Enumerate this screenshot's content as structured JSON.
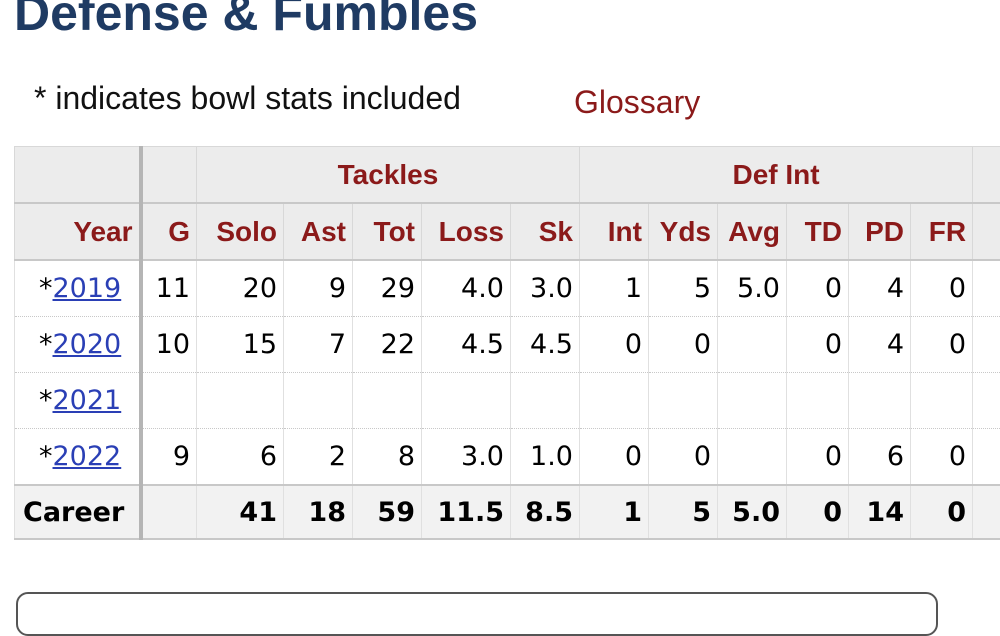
{
  "page": {
    "title": "Defense & Fumbles",
    "note": "* indicates bowl stats included",
    "glossary_link": "Glossary"
  },
  "table": {
    "over_headers": {
      "tackles": "Tackles",
      "def_int": "Def Int"
    },
    "headers": [
      "Year",
      "G",
      "Solo",
      "Ast",
      "Tot",
      "Loss",
      "Sk",
      "Int",
      "Yds",
      "Avg",
      "TD",
      "PD",
      "FR"
    ],
    "rows": [
      {
        "prefix": "*",
        "year": "2019",
        "cells": [
          "11",
          "20",
          "9",
          "29",
          "4.0",
          "3.0",
          "1",
          "5",
          "5.0",
          "0",
          "4",
          "0"
        ]
      },
      {
        "prefix": "*",
        "year": "2020",
        "cells": [
          "10",
          "15",
          "7",
          "22",
          "4.5",
          "4.5",
          "0",
          "0",
          "",
          "0",
          "4",
          "0"
        ]
      },
      {
        "prefix": "*",
        "year": "2021",
        "cells": [
          "",
          "",
          "",
          "",
          "",
          "",
          "",
          "",
          "",
          "",
          "",
          ""
        ]
      },
      {
        "prefix": "*",
        "year": "2022",
        "cells": [
          "9",
          "6",
          "2",
          "8",
          "3.0",
          "1.0",
          "0",
          "0",
          "",
          "0",
          "6",
          "0"
        ]
      }
    ],
    "career": {
      "label": "Career",
      "cells": [
        "",
        "41",
        "18",
        "59",
        "11.5",
        "8.5",
        "1",
        "5",
        "5.0",
        "0",
        "14",
        "0"
      ]
    }
  },
  "colors": {
    "title": "#1f3b63",
    "header_text": "#8b1a1a",
    "link": "#2a3fb5",
    "header_bg": "#ececec"
  }
}
